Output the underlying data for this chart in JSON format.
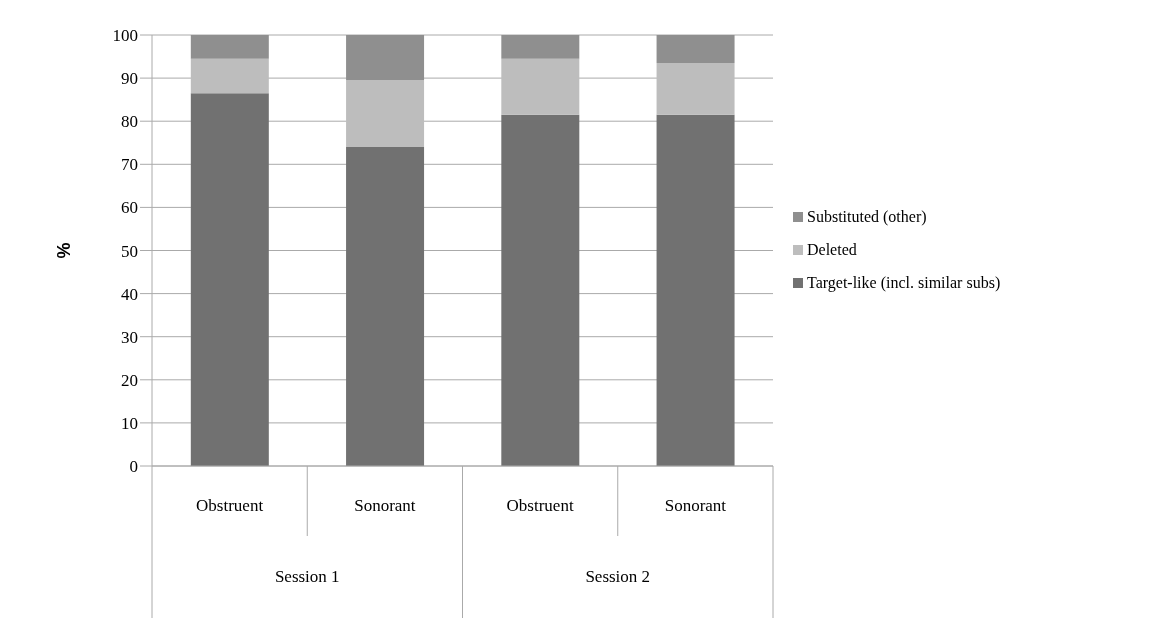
{
  "chart_data": {
    "type": "bar",
    "stacked": true,
    "ylabel": "%",
    "categories": [
      "Obstruent",
      "Sonorant",
      "Obstruent",
      "Sonorant"
    ],
    "annotations": [
      "Session 1",
      "Session 2"
    ],
    "series": [
      {
        "name": "Target-like (incl. similar subs)",
        "color": "#717171",
        "values": [
          86.5,
          74,
          81.5,
          81.5
        ]
      },
      {
        "name": "Deleted",
        "color": "#bdbdbd",
        "values": [
          8,
          15.5,
          13,
          12
        ]
      },
      {
        "name": "Substituted (other)",
        "color": "#8f8f8f",
        "values": [
          5.5,
          10.5,
          5.5,
          6.5
        ]
      }
    ],
    "ylim": [
      0,
      100
    ],
    "yticks": [
      0,
      10,
      20,
      30,
      40,
      50,
      60,
      70,
      80,
      90,
      100
    ],
    "grid": "y",
    "legend": "right"
  }
}
